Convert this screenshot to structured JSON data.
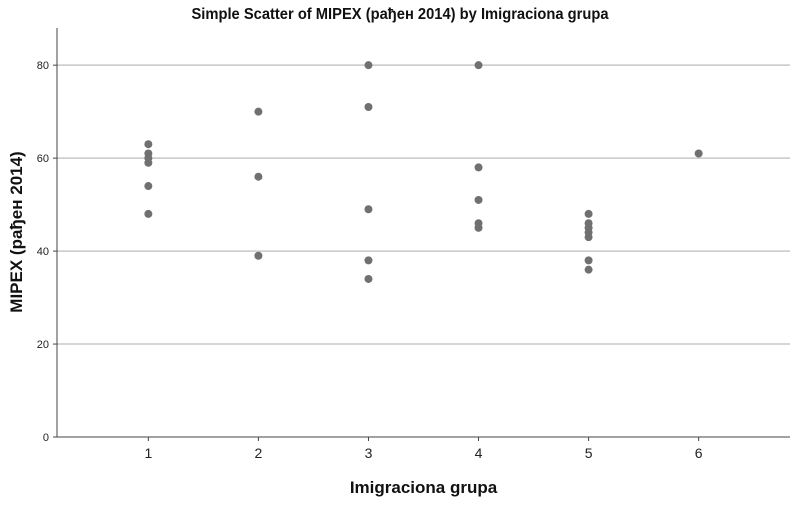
{
  "chart_data": {
    "type": "scatter",
    "title": "Simple Scatter of MIPEX (рађен 2014) by Imigraciona grupa",
    "xlabel": "Imigraciona grupa",
    "ylabel": "MIPEX (рађен 2014)",
    "x_ticks": [
      "1",
      "2",
      "3",
      "4",
      "5",
      "6"
    ],
    "y_ticks": [
      "0",
      "20",
      "40",
      "60",
      "80"
    ],
    "xlim": [
      0.17,
      6.83
    ],
    "ylim": [
      0,
      88
    ],
    "grid": "horizontal",
    "point_color": "#707070",
    "points": [
      {
        "x": 1,
        "y": 63
      },
      {
        "x": 1,
        "y": 61
      },
      {
        "x": 1,
        "y": 60
      },
      {
        "x": 1,
        "y": 59
      },
      {
        "x": 1,
        "y": 54
      },
      {
        "x": 1,
        "y": 48
      },
      {
        "x": 2,
        "y": 70
      },
      {
        "x": 2,
        "y": 56
      },
      {
        "x": 2,
        "y": 39
      },
      {
        "x": 3,
        "y": 80
      },
      {
        "x": 3,
        "y": 71
      },
      {
        "x": 3,
        "y": 49
      },
      {
        "x": 3,
        "y": 38
      },
      {
        "x": 3,
        "y": 34
      },
      {
        "x": 4,
        "y": 80
      },
      {
        "x": 4,
        "y": 58
      },
      {
        "x": 4,
        "y": 51
      },
      {
        "x": 4,
        "y": 46
      },
      {
        "x": 4,
        "y": 45
      },
      {
        "x": 5,
        "y": 48
      },
      {
        "x": 5,
        "y": 46
      },
      {
        "x": 5,
        "y": 45
      },
      {
        "x": 5,
        "y": 44
      },
      {
        "x": 5,
        "y": 43
      },
      {
        "x": 5,
        "y": 38
      },
      {
        "x": 5,
        "y": 36
      },
      {
        "x": 6,
        "y": 61
      }
    ]
  }
}
